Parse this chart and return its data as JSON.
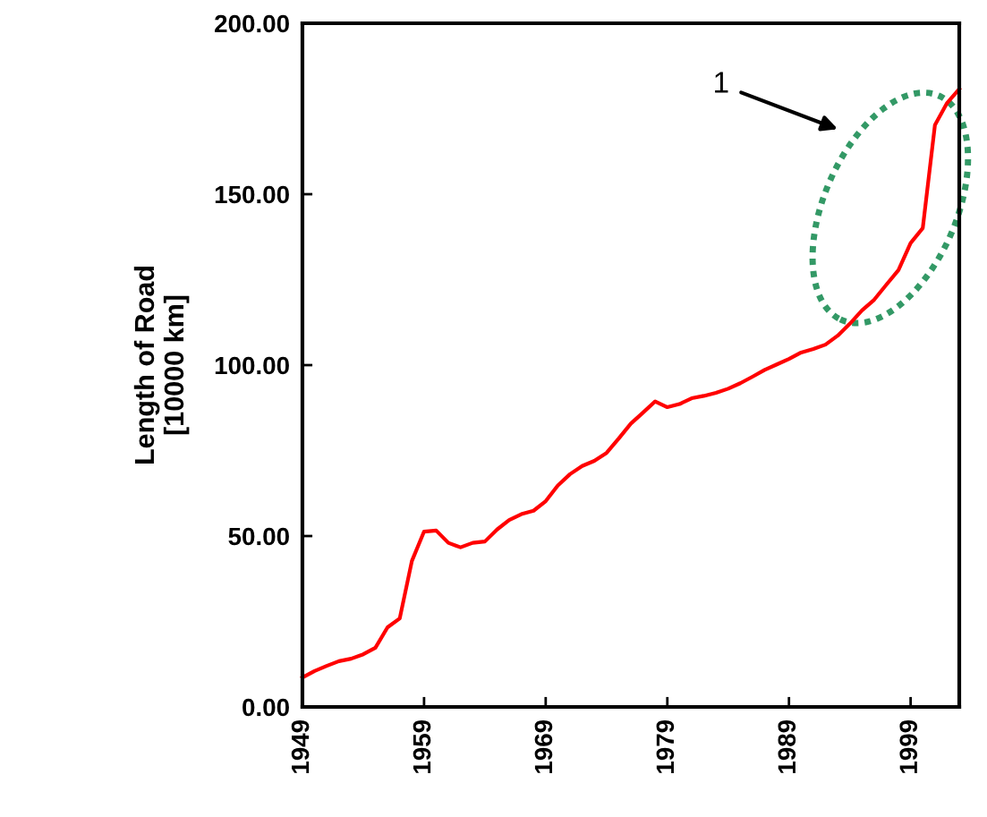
{
  "chart_data": {
    "type": "line",
    "ylabel": "Length of Road\n[10000 km]",
    "x": [
      1949,
      1950,
      1951,
      1952,
      1953,
      1954,
      1955,
      1956,
      1957,
      1958,
      1959,
      1960,
      1961,
      1962,
      1963,
      1964,
      1965,
      1966,
      1967,
      1968,
      1969,
      1970,
      1971,
      1972,
      1973,
      1974,
      1975,
      1976,
      1977,
      1978,
      1979,
      1980,
      1981,
      1982,
      1983,
      1984,
      1985,
      1986,
      1987,
      1988,
      1989,
      1990,
      1991,
      1992,
      1993,
      1994,
      1995,
      1996,
      1997,
      1998,
      1999,
      2000,
      2001,
      2002,
      2003
    ],
    "series": [
      {
        "color": "#ff0000",
        "values": [
          8.6,
          10.5,
          12,
          13.4,
          14.1,
          15.4,
          17.3,
          23.3,
          25.9,
          42.7,
          51.3,
          51.6,
          48,
          46.7,
          48,
          48.4,
          51.9,
          54.7,
          56.4,
          57.4,
          60.2,
          64.8,
          68.1,
          70.5,
          72,
          74.3,
          78.5,
          82.9,
          86.1,
          89.4,
          87.7,
          88.6,
          90.3,
          91,
          91.9,
          93.1,
          94.7,
          96.6,
          98.6,
          100.2,
          101.8,
          103.7,
          104.7,
          106,
          108.6,
          112.1,
          116,
          119.1,
          123.5,
          127.8,
          135.7,
          140.1,
          170.2,
          176.7,
          180.8
        ]
      }
    ],
    "xlim": [
      1949,
      2003
    ],
    "xticks": [
      1949,
      1959,
      1969,
      1979,
      1989,
      1999
    ],
    "ylim": [
      0,
      200
    ],
    "yticks": [
      {
        "value": 0,
        "label": "0.00"
      },
      {
        "value": 50,
        "label": "50.00"
      },
      {
        "value": 100,
        "label": "100.00"
      },
      {
        "value": 150,
        "label": "150.00"
      },
      {
        "value": 200,
        "label": "200.00"
      }
    ],
    "annotations": [
      "1"
    ],
    "grid": false,
    "marker": "none",
    "line_style": "solid"
  }
}
